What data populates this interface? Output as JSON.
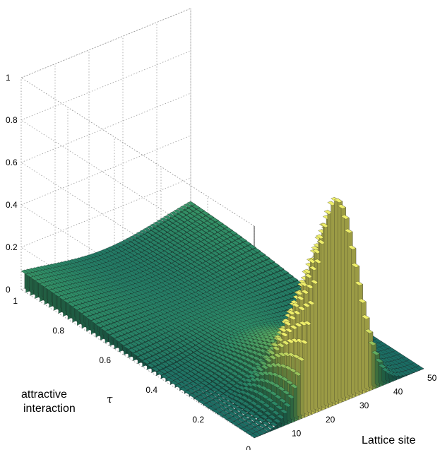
{
  "chart_data": {
    "type": "bar3d",
    "xlabel": "Lattice site",
    "ylabel": "attractive interaction",
    "ylabel_symbol": "τ",
    "zlabel": "",
    "xlim": [
      0,
      50
    ],
    "ylim": [
      0,
      1
    ],
    "zlim": [
      0,
      1
    ],
    "xticks": [
      "10",
      "20",
      "30",
      "40",
      "50"
    ],
    "yticks": [
      "0",
      "0.2",
      "0.4",
      "0.6",
      "0.8",
      "1"
    ],
    "zticks": [
      "0",
      "0.2",
      "0.4",
      "0.6",
      "0.8",
      "1"
    ],
    "grid": true,
    "sites": 50,
    "tau_steps": 50,
    "initial_site": 25,
    "peak_at_tau_0": 1.0,
    "boundary_value": 0.12,
    "surface_description_values": {
      "tau": [
        0,
        0.2,
        0.4,
        0.6,
        0.8,
        1.0
      ],
      "value_at_site_25": [
        1.0,
        0.18,
        0.07,
        0.045,
        0.035,
        0.03
      ],
      "value_at_site_1": [
        0.0,
        0.0,
        0.01,
        0.05,
        0.09,
        0.12
      ],
      "value_at_site_50": [
        0.0,
        0.0,
        0.01,
        0.05,
        0.09,
        0.12
      ]
    },
    "colormap": [
      "#1a6b63",
      "#2f8d66",
      "#5aa85f",
      "#a9c95a",
      "#eeee6a"
    ]
  }
}
